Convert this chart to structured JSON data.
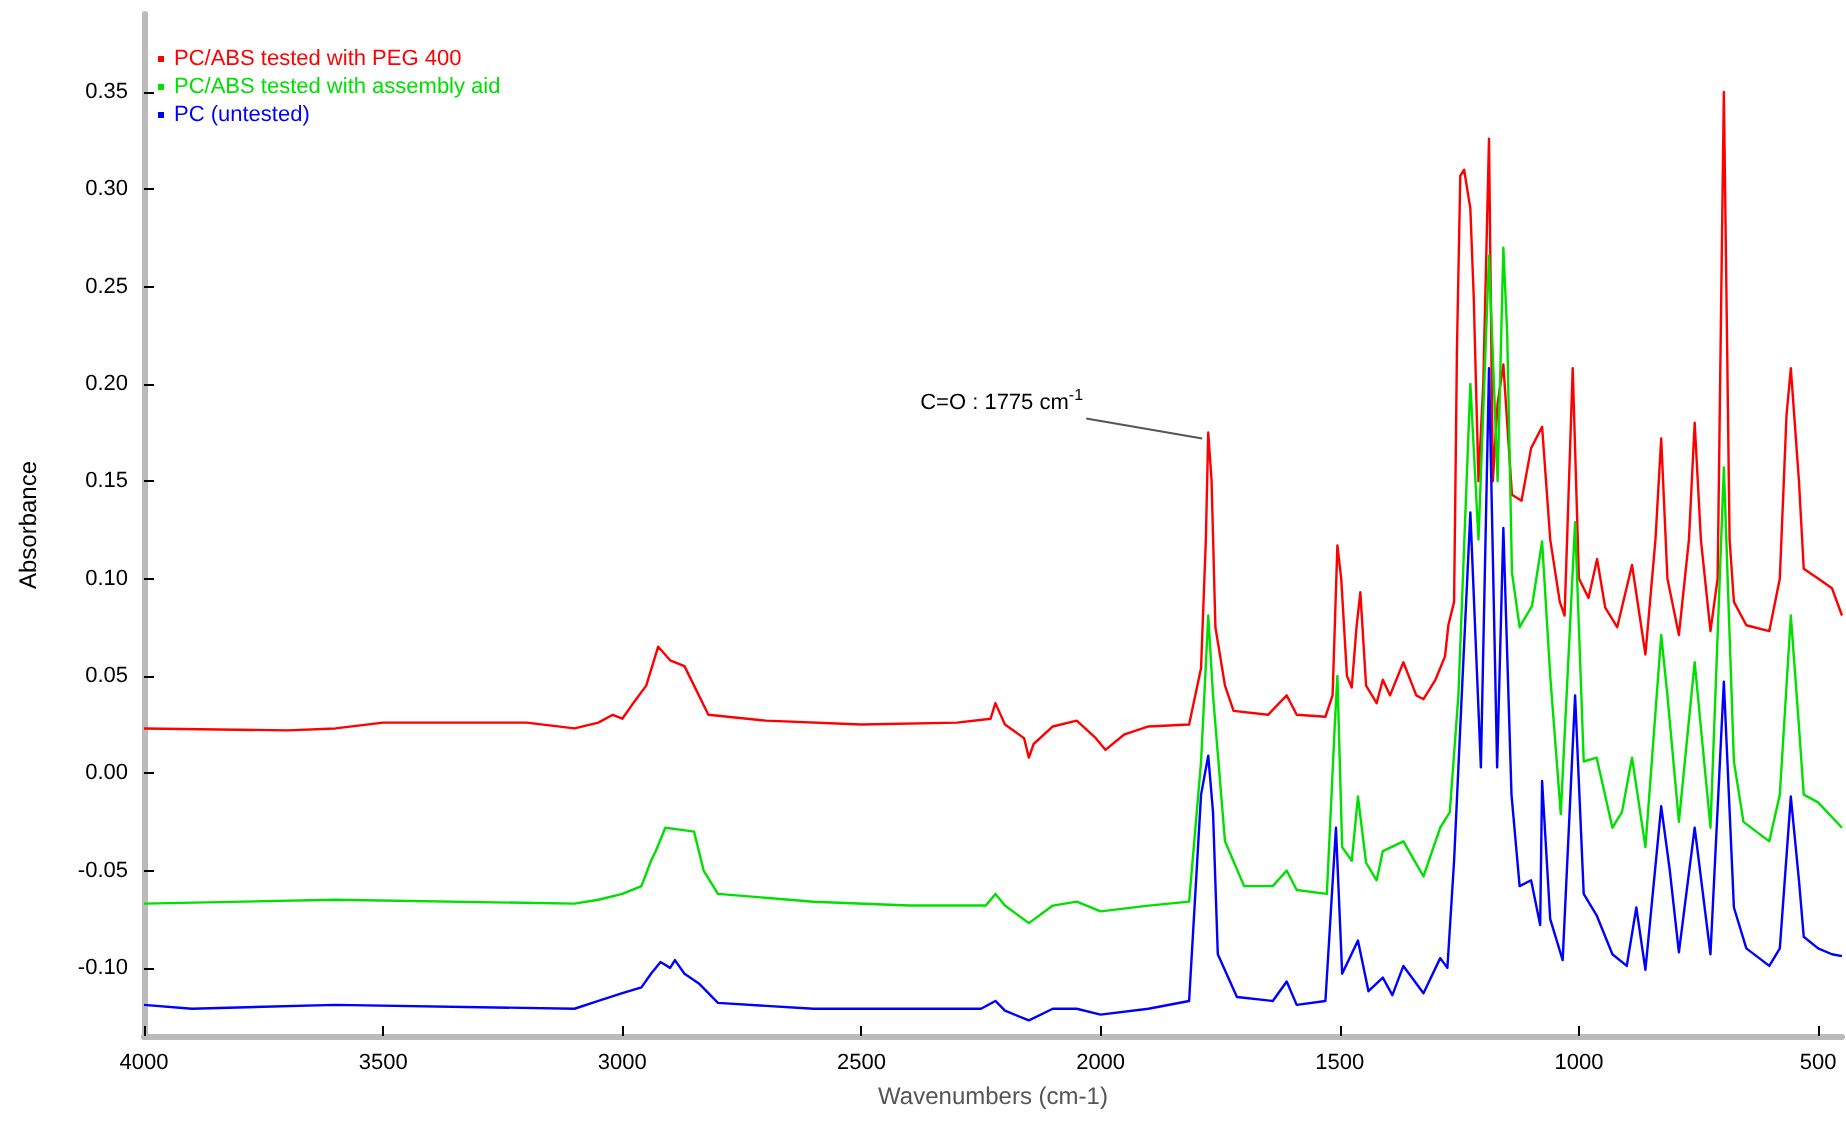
{
  "chart_data": {
    "type": "line",
    "xlabel": "Wavenumbers (cm-1)",
    "ylabel": "Absorbance",
    "xlim": [
      4000,
      450
    ],
    "xticks": [
      4000,
      3500,
      3000,
      2500,
      2000,
      1500,
      1000,
      500
    ],
    "ylim": [
      -0.135,
      0.39
    ],
    "yticks": [
      {
        "value": -0.1,
        "label": "-0.10"
      },
      -0.05,
      {
        "value": 0,
        "label": "0.00"
      },
      0.05,
      {
        "value": 0.1,
        "label": "0.10"
      },
      0.15,
      {
        "value": 0.2,
        "label": "0.20"
      },
      0.25,
      {
        "value": 0.3,
        "label": "0.30"
      },
      0.35
    ],
    "grid": false,
    "legend": "top left",
    "marker": "none",
    "line_style": "solid",
    "annotations": [
      {
        "text": "C=O : 1775 cm$^{-1}$",
        "x": 1775,
        "y": 0.175
      }
    ],
    "series": [
      {
        "name": "PC/ABS tested with PEG 400",
        "color": "#ff0000",
        "x": [
          4000,
          3700,
          3600,
          3500,
          3200,
          3100,
          3050,
          3020,
          3000,
          2980,
          2950,
          2925,
          2900,
          2870,
          2850,
          2820,
          2700,
          2500,
          2300,
          2230,
          2220,
          2200,
          2160,
          2150,
          2140,
          2100,
          2050,
          2010,
          1990,
          1950,
          1900,
          1815,
          1790,
          1780,
          1775,
          1768,
          1760,
          1740,
          1722,
          1650,
          1611,
          1590,
          1530,
          1515,
          1505,
          1497,
          1485,
          1475,
          1465,
          1457,
          1445,
          1423,
          1410,
          1395,
          1367,
          1340,
          1325,
          1300,
          1280,
          1273,
          1261,
          1255,
          1248,
          1240,
          1227,
          1220,
          1210,
          1200,
          1188,
          1180,
          1170,
          1158,
          1150,
          1140,
          1120,
          1100,
          1077,
          1060,
          1040,
          1030,
          1013,
          1000,
          980,
          962,
          945,
          920,
          889,
          861,
          840,
          828,
          815,
          791,
          770,
          758,
          745,
          725,
          710,
          697,
          685,
          676,
          650,
          602,
          580,
          566,
          557,
          540,
          530,
          500,
          471,
          450
        ],
        "values": [
          0.023,
          0.022,
          0.023,
          0.026,
          0.026,
          0.023,
          0.026,
          0.03,
          0.028,
          0.035,
          0.045,
          0.065,
          0.058,
          0.055,
          0.045,
          0.03,
          0.027,
          0.025,
          0.026,
          0.028,
          0.036,
          0.025,
          0.018,
          0.008,
          0.015,
          0.024,
          0.027,
          0.018,
          0.012,
          0.02,
          0.024,
          0.025,
          0.054,
          0.12,
          0.175,
          0.15,
          0.075,
          0.045,
          0.032,
          0.03,
          0.04,
          0.03,
          0.029,
          0.04,
          0.117,
          0.1,
          0.05,
          0.044,
          0.075,
          0.093,
          0.045,
          0.036,
          0.048,
          0.04,
          0.057,
          0.04,
          0.038,
          0.048,
          0.06,
          0.076,
          0.088,
          0.218,
          0.307,
          0.31,
          0.29,
          0.245,
          0.15,
          0.2,
          0.326,
          0.15,
          0.19,
          0.21,
          0.18,
          0.143,
          0.14,
          0.167,
          0.178,
          0.12,
          0.088,
          0.081,
          0.208,
          0.1,
          0.09,
          0.11,
          0.085,
          0.075,
          0.107,
          0.061,
          0.12,
          0.172,
          0.1,
          0.071,
          0.12,
          0.18,
          0.12,
          0.073,
          0.1,
          0.35,
          0.12,
          0.088,
          0.076,
          0.073,
          0.1,
          0.184,
          0.208,
          0.15,
          0.105,
          0.1,
          0.095,
          0.081
        ]
      },
      {
        "name": "PC/ABS tested with assembly aid",
        "color": "#00e000",
        "x": [
          4000,
          3600,
          3100,
          3050,
          3000,
          2960,
          2940,
          2930,
          2910,
          2880,
          2850,
          2830,
          2800,
          2600,
          2400,
          2240,
          2220,
          2200,
          2150,
          2100,
          2050,
          2000,
          1900,
          1815,
          1790,
          1775,
          1765,
          1740,
          1700,
          1640,
          1611,
          1590,
          1527,
          1510,
          1505,
          1495,
          1475,
          1462,
          1445,
          1423,
          1410,
          1367,
          1325,
          1290,
          1270,
          1252,
          1227,
          1210,
          1188,
          1170,
          1158,
          1150,
          1140,
          1124,
          1098,
          1077,
          1060,
          1038,
          1008,
          990,
          963,
          930,
          910,
          889,
          861,
          828,
          815,
          791,
          758,
          725,
          697,
          676,
          656,
          602,
          580,
          557,
          540,
          530,
          500,
          450
        ],
        "values": [
          -0.067,
          -0.065,
          -0.067,
          -0.065,
          -0.062,
          -0.058,
          -0.045,
          -0.04,
          -0.028,
          -0.029,
          -0.03,
          -0.05,
          -0.062,
          -0.066,
          -0.068,
          -0.068,
          -0.062,
          -0.068,
          -0.077,
          -0.068,
          -0.066,
          -0.071,
          -0.068,
          -0.066,
          0.006,
          0.081,
          0.04,
          -0.035,
          -0.058,
          -0.058,
          -0.05,
          -0.06,
          -0.062,
          0.027,
          0.05,
          -0.038,
          -0.045,
          -0.012,
          -0.046,
          -0.055,
          -0.04,
          -0.035,
          -0.053,
          -0.028,
          -0.02,
          0.04,
          0.2,
          0.12,
          0.266,
          0.15,
          0.27,
          0.226,
          0.103,
          0.075,
          0.086,
          0.119,
          0.05,
          -0.021,
          0.129,
          0.006,
          0.008,
          -0.028,
          -0.02,
          0.008,
          -0.038,
          0.071,
          0.04,
          -0.025,
          0.057,
          -0.028,
          0.157,
          0.006,
          -0.025,
          -0.035,
          -0.011,
          0.081,
          0.024,
          -0.011,
          -0.015,
          -0.028
        ]
      },
      {
        "name": "PC (untested)",
        "color": "#0000ff",
        "x": [
          4000,
          3900,
          3600,
          3100,
          3050,
          3000,
          2960,
          2940,
          2920,
          2900,
          2890,
          2870,
          2840,
          2800,
          2600,
          2250,
          2220,
          2200,
          2150,
          2100,
          2050,
          2000,
          1900,
          1815,
          1790,
          1775,
          1765,
          1755,
          1715,
          1640,
          1611,
          1590,
          1530,
          1508,
          1495,
          1462,
          1440,
          1410,
          1390,
          1367,
          1325,
          1290,
          1275,
          1261,
          1245,
          1227,
          1205,
          1188,
          1171,
          1158,
          1141,
          1124,
          1100,
          1081,
          1077,
          1060,
          1034,
          1008,
          990,
          963,
          930,
          900,
          880,
          861,
          828,
          810,
          791,
          758,
          725,
          697,
          676,
          650,
          602,
          580,
          557,
          540,
          530,
          500,
          471,
          450
        ],
        "values": [
          -0.119,
          -0.121,
          -0.119,
          -0.121,
          -0.117,
          -0.113,
          -0.11,
          -0.103,
          -0.097,
          -0.1,
          -0.096,
          -0.103,
          -0.108,
          -0.118,
          -0.121,
          -0.121,
          -0.117,
          -0.122,
          -0.127,
          -0.121,
          -0.121,
          -0.124,
          -0.121,
          -0.117,
          -0.011,
          0.009,
          -0.02,
          -0.093,
          -0.115,
          -0.117,
          -0.107,
          -0.119,
          -0.117,
          -0.028,
          -0.103,
          -0.086,
          -0.112,
          -0.105,
          -0.114,
          -0.099,
          -0.113,
          -0.095,
          -0.1,
          -0.045,
          0.04,
          0.134,
          0.003,
          0.208,
          0.003,
          0.126,
          -0.011,
          -0.058,
          -0.055,
          -0.078,
          -0.004,
          -0.075,
          -0.096,
          0.04,
          -0.062,
          -0.073,
          -0.093,
          -0.099,
          -0.069,
          -0.101,
          -0.017,
          -0.05,
          -0.092,
          -0.028,
          -0.093,
          0.047,
          -0.069,
          -0.09,
          -0.099,
          -0.09,
          -0.012,
          -0.055,
          -0.084,
          -0.09,
          -0.093,
          -0.094
        ]
      }
    ]
  }
}
